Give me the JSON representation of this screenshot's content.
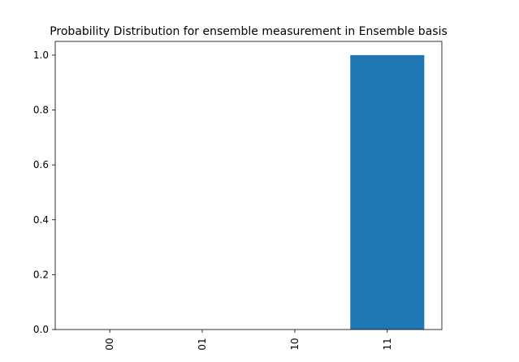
{
  "chart_data": {
    "type": "bar",
    "title": "Probability Distribution for ensemble measurement in Ensemble basis",
    "categories": [
      "00",
      "01",
      "10",
      "11"
    ],
    "values": [
      0,
      0,
      0,
      1
    ],
    "color": "#1f77b4",
    "ylim": [
      0,
      1.05
    ],
    "yticks": [
      {
        "value": 0,
        "label": "0.0"
      },
      {
        "value": 0.2,
        "label": "0.2"
      },
      {
        "value": 0.4,
        "label": "0.4"
      },
      {
        "value": 0.6,
        "label": "0.6"
      },
      {
        "value": 0.8,
        "label": "0.8"
      },
      {
        "value": 1,
        "label": "1.0"
      }
    ]
  }
}
